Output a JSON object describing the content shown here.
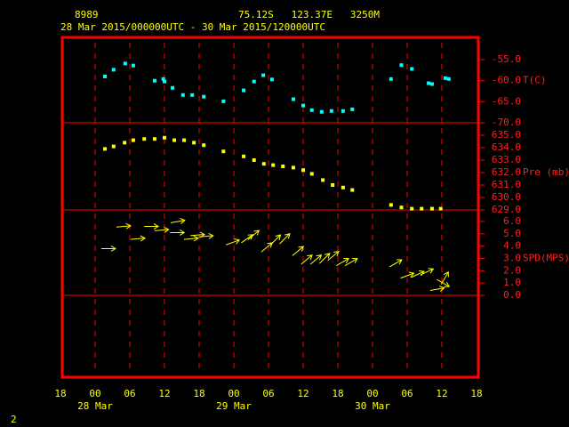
{
  "header": {
    "id": "8989",
    "location": "75.12S   123.37E   3250M",
    "period": "28 Mar 2015/000000UTC - 30 Mar 2015/120000UTC"
  },
  "footer": "2",
  "chart_data": [
    {
      "type": "scatter",
      "label": "T(C)",
      "color": "#00ffff",
      "x": [
        1.7,
        3.2,
        5.2,
        6.6,
        10.3,
        11.8,
        12,
        13.4,
        15.2,
        16.8,
        18.8,
        22.2,
        25.7,
        27.5,
        29.1,
        30.6,
        34.3,
        36,
        37.5,
        39.2,
        40.9,
        42.9,
        44.5,
        51.2,
        53,
        54.8,
        57.7,
        58.3,
        60.6,
        61.2
      ],
      "values": [
        -59,
        -57.4,
        -55.9,
        -56.4,
        -60,
        -59.6,
        -60.2,
        -61.7,
        -63.4,
        -63.4,
        -63.8,
        -64.9,
        -62.3,
        -60.2,
        -58.7,
        -59.7,
        -64.4,
        -65.9,
        -67,
        -67.4,
        -67.2,
        -67.2,
        -66.8,
        -59.6,
        -56.3,
        -57.2,
        -60.6,
        -60.8,
        -59.4,
        -59.6
      ],
      "ylim": [
        -70,
        -49.7
      ],
      "yticks": [
        {
          "value": -55,
          "label": "-55.0"
        },
        {
          "value": -60,
          "label": "-60.0"
        },
        {
          "value": -65,
          "label": "-65.0"
        },
        {
          "value": -70,
          "label": "-70.0"
        }
      ]
    },
    {
      "type": "scatter",
      "label": "Pre (mb)",
      "color": "#ffff00",
      "x": [
        1.7,
        3.2,
        5.1,
        6.6,
        8.5,
        10.3,
        12,
        13.7,
        15.4,
        17.1,
        18.8,
        22.2,
        25.7,
        27.5,
        29.2,
        30.8,
        32.5,
        34.3,
        36,
        37.5,
        39.4,
        41.1,
        42.9,
        44.5,
        51.2,
        53,
        54.8,
        56.5,
        58.3,
        59.8
      ],
      "values": [
        633.9,
        634.1,
        634.4,
        634.6,
        634.7,
        634.7,
        634.8,
        634.6,
        634.6,
        634.4,
        634.2,
        633.7,
        633.3,
        633,
        632.7,
        632.6,
        632.5,
        632.4,
        632.2,
        631.9,
        631.4,
        631,
        630.8,
        630.6,
        629.4,
        629.2,
        629.1,
        629.1,
        629.1,
        629.1
      ],
      "ylim": [
        629,
        636
      ],
      "yticks": [
        {
          "value": 635,
          "label": "635.0"
        },
        {
          "value": 634,
          "label": "634.0"
        },
        {
          "value": 633,
          "label": "633.0"
        },
        {
          "value": 632,
          "label": "632.0"
        },
        {
          "value": 631,
          "label": "631.0"
        },
        {
          "value": 630,
          "label": "630.0"
        },
        {
          "value": 629,
          "label": "629.0"
        }
      ]
    },
    {
      "type": "vector",
      "label": "SPD(MPS)",
      "color": "#ffff00",
      "x": [
        2.3,
        4.9,
        7.4,
        9.7,
        11.5,
        14.2,
        14.3,
        16.6,
        17.7,
        19.2,
        23.8,
        26.3,
        27.4,
        29.7,
        31.2,
        32.8,
        35.1,
        36.6,
        38.2,
        39.7,
        41.2,
        42.8,
        44.3,
        52,
        54,
        55.8,
        57.4,
        59.2,
        60.2,
        60.5
      ],
      "values": [
        3.8,
        5.6,
        4.6,
        5.6,
        5.3,
        5.1,
        6.0,
        4.6,
        4.9,
        4.8,
        4.3,
        4.6,
        4.9,
        3.9,
        4.5,
        4.6,
        3.6,
        2.9,
        2.9,
        3.0,
        3.2,
        2.7,
        2.7,
        2.6,
        1.6,
        1.7,
        1.9,
        0.5,
        1.0,
        1.4
      ],
      "direction": [
        0,
        5,
        5,
        0,
        5,
        0,
        10,
        5,
        5,
        5,
        20,
        35,
        40,
        40,
        45,
        45,
        40,
        40,
        40,
        45,
        40,
        30,
        30,
        30,
        20,
        25,
        25,
        10,
        -30,
        60
      ],
      "ylim": [
        -6.65,
        6.94
      ],
      "yticks": [
        {
          "value": 6,
          "label": "6.0"
        },
        {
          "value": 5,
          "label": "5.0"
        },
        {
          "value": 4,
          "label": "4.0"
        },
        {
          "value": 3,
          "label": "3.0"
        },
        {
          "value": 2,
          "label": "2.0"
        },
        {
          "value": 1,
          "label": "1.0"
        },
        {
          "value": 0,
          "label": "0.0"
        }
      ],
      "xlim": [
        -6,
        66
      ],
      "xticks": [
        {
          "value": -6,
          "label": "18"
        },
        {
          "value": 0,
          "label": "00"
        },
        {
          "value": 6,
          "label": "06"
        },
        {
          "value": 12,
          "label": "12"
        },
        {
          "value": 18,
          "label": "18"
        },
        {
          "value": 24,
          "label": "00"
        },
        {
          "value": 30,
          "label": "06"
        },
        {
          "value": 36,
          "label": "12"
        },
        {
          "value": 42,
          "label": "18"
        },
        {
          "value": 48,
          "label": "00"
        },
        {
          "value": 54,
          "label": "06"
        },
        {
          "value": 60,
          "label": "12"
        },
        {
          "value": 66,
          "label": "18"
        }
      ],
      "date_labels": [
        {
          "value": 0,
          "label": "28 Mar"
        },
        {
          "value": 24,
          "label": "29 Mar"
        },
        {
          "value": 48,
          "label": "30 Mar"
        }
      ]
    }
  ]
}
